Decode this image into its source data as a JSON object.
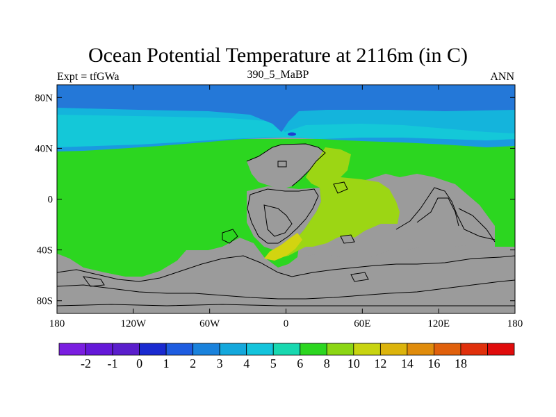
{
  "title": "Ocean Potential Temperature at 2116m (in C)",
  "subtitle_left": "Expt = tfGWa",
  "subtitle_center": "390_5_MaBP",
  "subtitle_right": "ANN",
  "lat_ticks": [
    {
      "label": "80N",
      "lat": 80
    },
    {
      "label": "40N",
      "lat": 40
    },
    {
      "label": "0",
      "lat": 0
    },
    {
      "label": "40S",
      "lat": -40
    },
    {
      "label": "80S",
      "lat": -80
    }
  ],
  "lon_ticks": [
    {
      "label": "180",
      "lon": -180
    },
    {
      "label": "120W",
      "lon": -120
    },
    {
      "label": "60W",
      "lon": -60
    },
    {
      "label": "0",
      "lon": 0
    },
    {
      "label": "60E",
      "lon": 60
    },
    {
      "label": "120E",
      "lon": 120
    },
    {
      "label": "180",
      "lon": 180
    }
  ],
  "colorbar": {
    "colors": [
      "#7a1ee0",
      "#6418d8",
      "#5a1ecc",
      "#1a2ad0",
      "#1e5ce0",
      "#1a82dc",
      "#14a8dc",
      "#14c4dc",
      "#18d8b0",
      "#2cd620",
      "#8cd614",
      "#c8d410",
      "#dcb40c",
      "#e08c0c",
      "#e0600c",
      "#e0300c",
      "#e00c0c"
    ],
    "labels": [
      "-2",
      "-1",
      "0",
      "1",
      "2",
      "3",
      "4",
      "5",
      "6",
      "8",
      "10",
      "12",
      "14",
      "16",
      "18"
    ]
  },
  "map_colors": {
    "land": "#9b9b9b",
    "arctic_deep": "#2478d8",
    "north_band": "#1a9ae0",
    "north_mid": "#14b4dc",
    "transition": "#14c8d8",
    "main_ocean": "#2cd620",
    "warm_basin": "#9cd614",
    "warmest_patch": "#d2d410",
    "coldest_patch": "#1e3ed0"
  }
}
